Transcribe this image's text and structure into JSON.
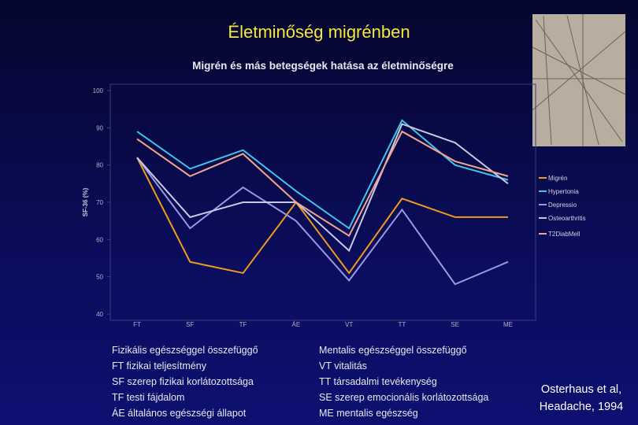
{
  "slide_title": "Életminőség migrénben",
  "chart_data": {
    "type": "line",
    "title": "Migrén és más betegségek hatása az életminőségre",
    "y_label": "SF-36 (%)",
    "categories": [
      "FT",
      "SF",
      "TF",
      "ÁE",
      "VT",
      "TT",
      "SE",
      "ME"
    ],
    "ylim": [
      40,
      100
    ],
    "yticks": [
      40,
      50,
      60,
      70,
      80,
      90,
      100
    ],
    "legend": "right",
    "series": [
      {
        "name": "Migrén",
        "color": "#f39a1e",
        "values": [
          82,
          54,
          51,
          70,
          51,
          71,
          66,
          66
        ]
      },
      {
        "name": "Hypertonia",
        "color": "#3fc4e6",
        "values": [
          89,
          79,
          84,
          73,
          63,
          92,
          80,
          76
        ]
      },
      {
        "name": "Depressio",
        "color": "#9a96e8",
        "values": [
          82,
          63,
          74,
          65,
          49,
          68,
          48,
          54
        ]
      },
      {
        "name": "Osteoarthritis",
        "color": "#c8c8e0",
        "values": [
          82,
          66,
          70,
          70,
          57,
          91,
          86,
          75
        ]
      },
      {
        "name": "T2DiabMell",
        "color": "#f2a48c",
        "values": [
          87,
          77,
          83,
          70,
          61,
          89,
          81,
          77
        ]
      }
    ]
  },
  "left_notes": [
    "Fizikális egészséggel összefüggő",
    "FT fizikai teljesítmény",
    "SF szerep fizikai korlátozottsága",
    "TF testi fájdalom",
    "ÁE általános egészségi állapot"
  ],
  "right_notes": [
    "Mentalis egészséggel összefüggő",
    "VT vitalitás",
    "TT társadalmi tevékenység",
    "SE szerep emocionális korlátozottsága",
    "ME mentalis egészség"
  ],
  "citation": [
    "Osterhaus et al,",
    "Headache, 1994"
  ]
}
